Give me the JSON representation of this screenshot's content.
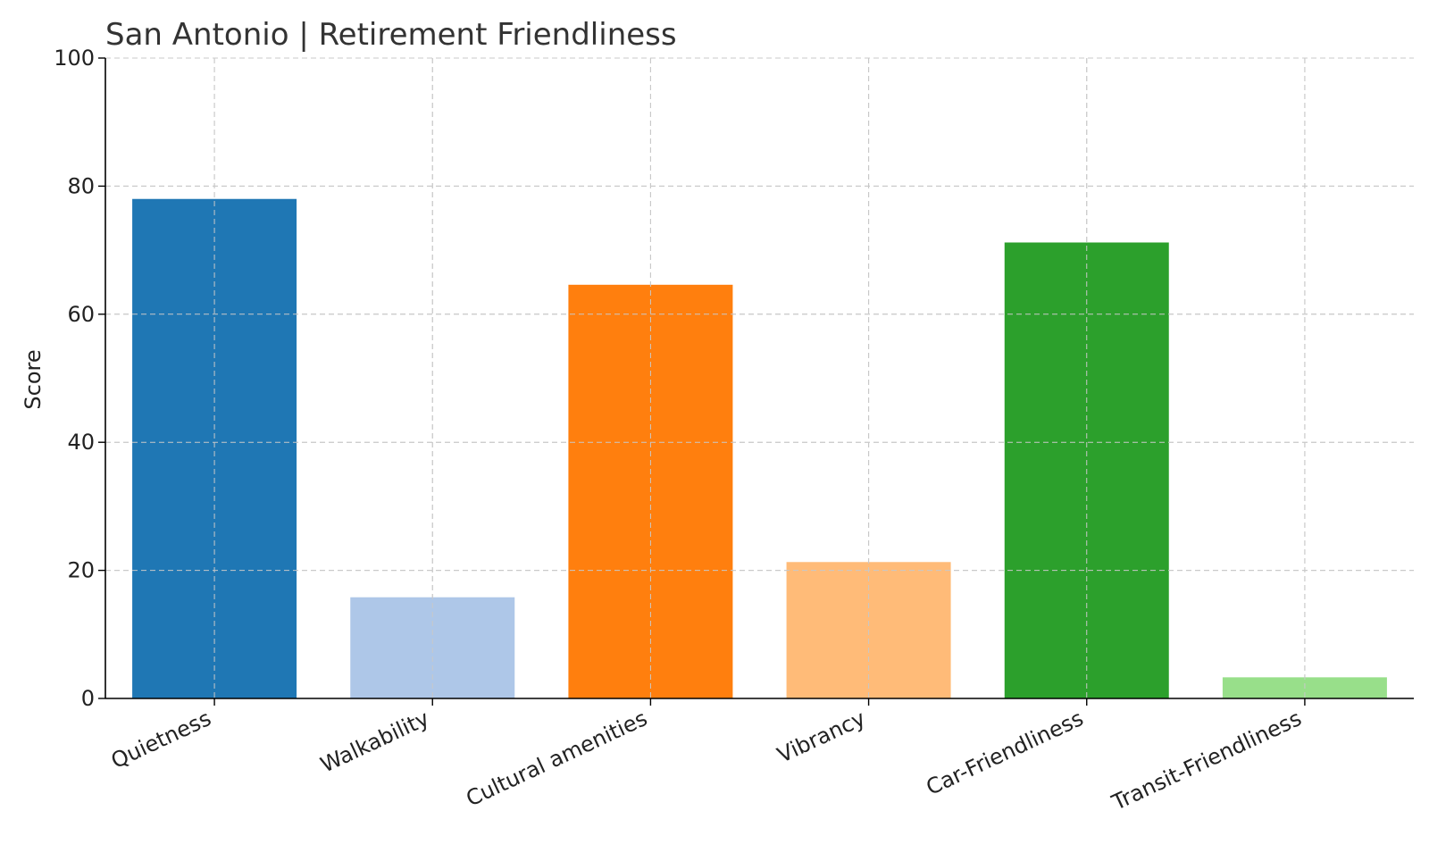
{
  "chart_data": {
    "type": "bar",
    "title": "San Antonio | Retirement Friendliness",
    "xlabel": "",
    "ylabel": "Score",
    "ylim": [
      0,
      100
    ],
    "yticks": [
      0,
      20,
      40,
      60,
      80,
      100
    ],
    "grid": true,
    "categories": [
      "Quietness",
      "Walkability",
      "Cultural amenities",
      "Vibrancy",
      "Car-Friendliness",
      "Transit-Friendliness"
    ],
    "values": [
      78,
      15.8,
      64.6,
      21.3,
      71.2,
      3.3
    ],
    "colors": [
      "#1f77b4",
      "#aec7e8",
      "#ff7f0e",
      "#ffbb78",
      "#2ca02c",
      "#98df8a"
    ]
  }
}
